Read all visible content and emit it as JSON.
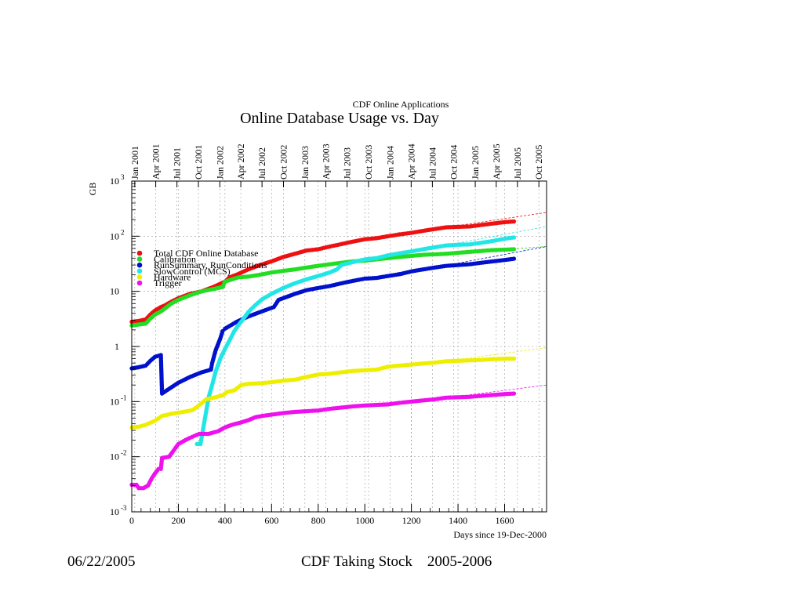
{
  "slide": {
    "footer_date": "06/22/2005",
    "footer_title": "CDF Taking Stock    2005-2006"
  },
  "chart_data": {
    "type": "scatter",
    "header": "CDF Online Applications",
    "title": "Online Database Usage vs. Day",
    "xlabel": "Days since 19-Dec-2000",
    "ylabel": "GB",
    "xlim": [
      0,
      1780
    ],
    "ylim": [
      0.001,
      1000
    ],
    "yscale": "log",
    "grid": true,
    "legend_position": "top-left",
    "x_ticks": [
      0,
      200,
      400,
      600,
      800,
      1000,
      1200,
      1400,
      1600
    ],
    "y_ticks": [
      {
        "value": 0.001,
        "base": "10",
        "exp": "-3"
      },
      {
        "value": 0.01,
        "base": "10",
        "exp": "-2"
      },
      {
        "value": 0.1,
        "base": "10",
        "exp": "-1"
      },
      {
        "value": 1,
        "base": "1",
        "exp": ""
      },
      {
        "value": 10,
        "base": "10",
        "exp": ""
      },
      {
        "value": 100,
        "base": "10",
        "exp": "2"
      },
      {
        "value": 1000,
        "base": "10",
        "exp": "3"
      }
    ],
    "date_ticks": [
      {
        "label": "Jan 2001",
        "x": 13
      },
      {
        "label": "Apr 2001",
        "x": 103
      },
      {
        "label": "Jul 2001",
        "x": 194
      },
      {
        "label": "Oct 2001",
        "x": 286
      },
      {
        "label": "Jan 2002",
        "x": 378
      },
      {
        "label": "Apr 2002",
        "x": 468
      },
      {
        "label": "Jul 2002",
        "x": 559
      },
      {
        "label": "Oct 2002",
        "x": 651
      },
      {
        "label": "Jan 2003",
        "x": 743
      },
      {
        "label": "Apr 2003",
        "x": 833
      },
      {
        "label": "Jul 2003",
        "x": 924
      },
      {
        "label": "Oct 2003",
        "x": 1016
      },
      {
        "label": "Jan 2004",
        "x": 1108
      },
      {
        "label": "Apr 2004",
        "x": 1199
      },
      {
        "label": "Jul 2004",
        "x": 1290
      },
      {
        "label": "Oct 2004",
        "x": 1382
      },
      {
        "label": "Jan 2005",
        "x": 1474
      },
      {
        "label": "Apr 2005",
        "x": 1564
      },
      {
        "label": "Jul 2005",
        "x": 1655
      },
      {
        "label": "Oct 2005",
        "x": 1747
      }
    ],
    "series": [
      {
        "name": "Total CDF Online Database",
        "color": "#ee1111",
        "points": [
          [
            0,
            2.8
          ],
          [
            30,
            2.9
          ],
          [
            60,
            3.1
          ],
          [
            80,
            3.8
          ],
          [
            100,
            4.5
          ],
          [
            125,
            5.2
          ],
          [
            140,
            5.5
          ],
          [
            170,
            6.5
          ],
          [
            200,
            7.5
          ],
          [
            250,
            9
          ],
          [
            300,
            10
          ],
          [
            350,
            12
          ],
          [
            400,
            15
          ],
          [
            420,
            18
          ],
          [
            450,
            20
          ],
          [
            500,
            25
          ],
          [
            550,
            30
          ],
          [
            600,
            35
          ],
          [
            650,
            42
          ],
          [
            700,
            48
          ],
          [
            750,
            55
          ],
          [
            800,
            58
          ],
          [
            850,
            65
          ],
          [
            900,
            72
          ],
          [
            950,
            80
          ],
          [
            1000,
            88
          ],
          [
            1050,
            92
          ],
          [
            1100,
            100
          ],
          [
            1150,
            108
          ],
          [
            1200,
            115
          ],
          [
            1250,
            125
          ],
          [
            1300,
            135
          ],
          [
            1350,
            145
          ],
          [
            1400,
            148
          ],
          [
            1450,
            150
          ],
          [
            1500,
            160
          ],
          [
            1550,
            170
          ],
          [
            1600,
            180
          ],
          [
            1640,
            185
          ]
        ],
        "fit": [
          [
            1300,
            135
          ],
          [
            1780,
            270
          ]
        ]
      },
      {
        "name": "Calibration",
        "color": "#22dd22",
        "points": [
          [
            0,
            2.4
          ],
          [
            30,
            2.5
          ],
          [
            60,
            2.6
          ],
          [
            80,
            3.2
          ],
          [
            100,
            3.8
          ],
          [
            125,
            4.3
          ],
          [
            140,
            4.8
          ],
          [
            170,
            6
          ],
          [
            200,
            7
          ],
          [
            250,
            8.5
          ],
          [
            300,
            10
          ],
          [
            350,
            11
          ],
          [
            390,
            12
          ],
          [
            400,
            15
          ],
          [
            440,
            17
          ],
          [
            460,
            18
          ],
          [
            500,
            18.5
          ],
          [
            550,
            20
          ],
          [
            600,
            22
          ],
          [
            650,
            23.5
          ],
          [
            700,
            25
          ],
          [
            750,
            27
          ],
          [
            800,
            29
          ],
          [
            850,
            31
          ],
          [
            900,
            33
          ],
          [
            950,
            35
          ],
          [
            1000,
            36
          ],
          [
            1050,
            38
          ],
          [
            1100,
            40
          ],
          [
            1150,
            42
          ],
          [
            1200,
            44
          ],
          [
            1250,
            46
          ],
          [
            1300,
            47
          ],
          [
            1350,
            48
          ],
          [
            1400,
            50
          ],
          [
            1450,
            52
          ],
          [
            1500,
            54
          ],
          [
            1550,
            56
          ],
          [
            1600,
            57
          ],
          [
            1640,
            58
          ]
        ],
        "fit": [
          [
            1300,
            47
          ],
          [
            1780,
            65
          ]
        ]
      },
      {
        "name": "RunSummary, RunConditions",
        "color": "#0011cc",
        "points": [
          [
            0,
            0.4
          ],
          [
            30,
            0.42
          ],
          [
            60,
            0.45
          ],
          [
            80,
            0.55
          ],
          [
            100,
            0.65
          ],
          [
            125,
            0.7
          ],
          [
            130,
            0.14
          ],
          [
            160,
            0.17
          ],
          [
            200,
            0.22
          ],
          [
            250,
            0.28
          ],
          [
            300,
            0.34
          ],
          [
            340,
            0.38
          ],
          [
            345,
            0.5
          ],
          [
            360,
            0.85
          ],
          [
            380,
            1.4
          ],
          [
            390,
            1.9
          ],
          [
            400,
            2.1
          ],
          [
            450,
            2.8
          ],
          [
            500,
            3.5
          ],
          [
            550,
            4.2
          ],
          [
            610,
            5.2
          ],
          [
            630,
            7
          ],
          [
            700,
            9
          ],
          [
            750,
            10.5
          ],
          [
            800,
            11.5
          ],
          [
            850,
            12.5
          ],
          [
            900,
            14
          ],
          [
            950,
            15.5
          ],
          [
            1000,
            17
          ],
          [
            1050,
            17.5
          ],
          [
            1100,
            19
          ],
          [
            1150,
            20.5
          ],
          [
            1200,
            23
          ],
          [
            1250,
            25
          ],
          [
            1300,
            27
          ],
          [
            1350,
            29
          ],
          [
            1400,
            30
          ],
          [
            1450,
            31
          ],
          [
            1500,
            33
          ],
          [
            1550,
            35
          ],
          [
            1600,
            37
          ],
          [
            1640,
            39
          ]
        ],
        "fit": [
          [
            1300,
            27
          ],
          [
            1780,
            65
          ]
        ]
      },
      {
        "name": "SlowControl (MCS)",
        "color": "#22e6e6",
        "points": [
          [
            280,
            0.017
          ],
          [
            295,
            0.017
          ],
          [
            330,
            0.12
          ],
          [
            345,
            0.2
          ],
          [
            360,
            0.35
          ],
          [
            380,
            0.6
          ],
          [
            400,
            0.9
          ],
          [
            420,
            1.3
          ],
          [
            440,
            1.9
          ],
          [
            460,
            2.5
          ],
          [
            480,
            3.2
          ],
          [
            500,
            4.2
          ],
          [
            530,
            5.6
          ],
          [
            560,
            7.2
          ],
          [
            600,
            9
          ],
          [
            650,
            11.5
          ],
          [
            700,
            14
          ],
          [
            750,
            16.5
          ],
          [
            800,
            19
          ],
          [
            850,
            22
          ],
          [
            880,
            25
          ],
          [
            900,
            30
          ],
          [
            950,
            34
          ],
          [
            1000,
            38
          ],
          [
            1050,
            40
          ],
          [
            1100,
            45
          ],
          [
            1150,
            49
          ],
          [
            1200,
            53
          ],
          [
            1250,
            58
          ],
          [
            1300,
            63
          ],
          [
            1350,
            68
          ],
          [
            1400,
            70
          ],
          [
            1450,
            71
          ],
          [
            1500,
            76
          ],
          [
            1550,
            82
          ],
          [
            1600,
            90
          ],
          [
            1640,
            95
          ]
        ],
        "fit": [
          [
            1300,
            63
          ],
          [
            1780,
            150
          ]
        ]
      },
      {
        "name": "Hardware",
        "color": "#eeee00",
        "points": [
          [
            0,
            0.034
          ],
          [
            30,
            0.035
          ],
          [
            60,
            0.038
          ],
          [
            100,
            0.045
          ],
          [
            130,
            0.055
          ],
          [
            170,
            0.06
          ],
          [
            220,
            0.065
          ],
          [
            260,
            0.07
          ],
          [
            280,
            0.08
          ],
          [
            320,
            0.11
          ],
          [
            360,
            0.12
          ],
          [
            390,
            0.13
          ],
          [
            410,
            0.15
          ],
          [
            440,
            0.16
          ],
          [
            470,
            0.2
          ],
          [
            500,
            0.21
          ],
          [
            550,
            0.215
          ],
          [
            600,
            0.225
          ],
          [
            650,
            0.24
          ],
          [
            700,
            0.25
          ],
          [
            750,
            0.28
          ],
          [
            800,
            0.31
          ],
          [
            850,
            0.32
          ],
          [
            900,
            0.34
          ],
          [
            950,
            0.36
          ],
          [
            1000,
            0.37
          ],
          [
            1050,
            0.38
          ],
          [
            1100,
            0.43
          ],
          [
            1150,
            0.45
          ],
          [
            1200,
            0.47
          ],
          [
            1250,
            0.49
          ],
          [
            1300,
            0.51
          ],
          [
            1350,
            0.54
          ],
          [
            1400,
            0.55
          ],
          [
            1450,
            0.56
          ],
          [
            1500,
            0.57
          ],
          [
            1550,
            0.59
          ],
          [
            1600,
            0.6
          ],
          [
            1640,
            0.6
          ]
        ],
        "fit": [
          [
            1300,
            0.51
          ],
          [
            1780,
            0.95
          ]
        ]
      },
      {
        "name": "Trigger",
        "color": "#ee11ee",
        "points": [
          [
            0,
            0.0031
          ],
          [
            20,
            0.0031
          ],
          [
            30,
            0.0027
          ],
          [
            50,
            0.0027
          ],
          [
            70,
            0.003
          ],
          [
            85,
            0.004
          ],
          [
            100,
            0.005
          ],
          [
            115,
            0.006
          ],
          [
            125,
            0.006
          ],
          [
            130,
            0.0095
          ],
          [
            160,
            0.01
          ],
          [
            180,
            0.013
          ],
          [
            200,
            0.017
          ],
          [
            230,
            0.02
          ],
          [
            250,
            0.022
          ],
          [
            270,
            0.024
          ],
          [
            290,
            0.026
          ],
          [
            330,
            0.026
          ],
          [
            370,
            0.029
          ],
          [
            400,
            0.034
          ],
          [
            430,
            0.038
          ],
          [
            470,
            0.042
          ],
          [
            500,
            0.046
          ],
          [
            530,
            0.052
          ],
          [
            560,
            0.055
          ],
          [
            600,
            0.058
          ],
          [
            650,
            0.062
          ],
          [
            700,
            0.065
          ],
          [
            750,
            0.067
          ],
          [
            800,
            0.069
          ],
          [
            850,
            0.074
          ],
          [
            900,
            0.078
          ],
          [
            950,
            0.082
          ],
          [
            1000,
            0.085
          ],
          [
            1050,
            0.087
          ],
          [
            1100,
            0.089
          ],
          [
            1150,
            0.095
          ],
          [
            1200,
            0.1
          ],
          [
            1250,
            0.105
          ],
          [
            1300,
            0.11
          ],
          [
            1350,
            0.118
          ],
          [
            1400,
            0.12
          ],
          [
            1450,
            0.122
          ],
          [
            1500,
            0.127
          ],
          [
            1550,
            0.132
          ],
          [
            1600,
            0.137
          ],
          [
            1640,
            0.14
          ]
        ],
        "fit": [
          [
            1300,
            0.11
          ],
          [
            1780,
            0.2
          ]
        ]
      }
    ]
  }
}
